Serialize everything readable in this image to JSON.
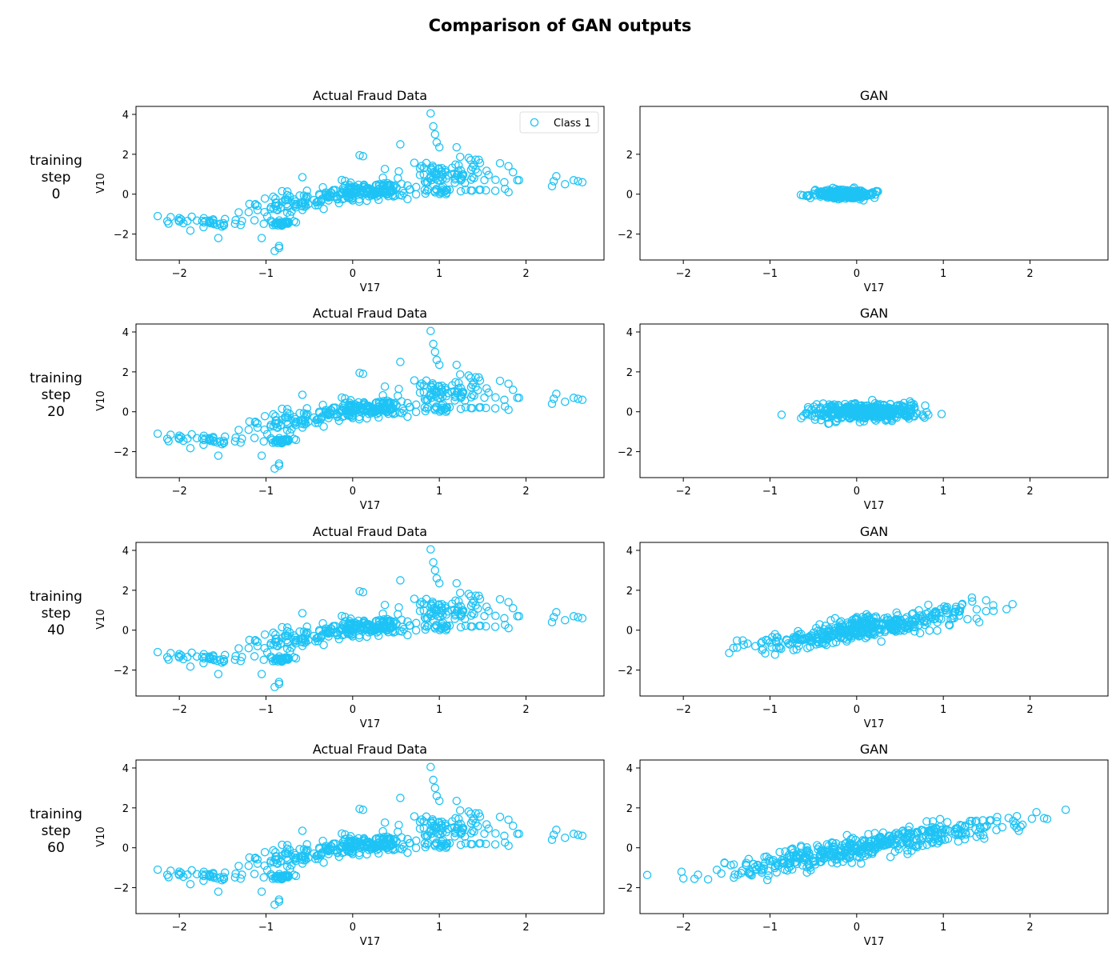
{
  "figure": {
    "title": "Comparison of GAN outputs",
    "marker_color": "#1ec3f5",
    "row_labels": [
      [
        "training",
        "step",
        "0"
      ],
      [
        "training",
        "step",
        "20"
      ],
      [
        "training",
        "step",
        "40"
      ],
      [
        "training",
        "step",
        "60"
      ]
    ]
  },
  "chart_data": [
    {
      "type": "scatter",
      "row": 0,
      "col": 0,
      "title": "Actual Fraud Data",
      "xlabel": "V17",
      "ylabel": "V10",
      "xlim": [
        -2.5,
        2.9
      ],
      "ylim": [
        -3.3,
        4.4
      ],
      "xticks": [
        -2,
        -1,
        0,
        1,
        2
      ],
      "yticks": [
        -2,
        0,
        2,
        4
      ],
      "legend": {
        "label": "Class 1",
        "position": "upper-right"
      },
      "series": [
        {
          "name": "Class 1",
          "dist": "fraud",
          "count": 460,
          "seed": 11
        }
      ]
    },
    {
      "type": "scatter",
      "row": 0,
      "col": 1,
      "title": "GAN",
      "xlabel": "V17",
      "ylabel": "",
      "xlim": [
        -2.5,
        2.9
      ],
      "ylim": [
        -3.3,
        4.4
      ],
      "xticks": [
        -2,
        -1,
        0,
        1,
        2
      ],
      "yticks": [
        -2,
        0,
        2
      ],
      "series": [
        {
          "name": "",
          "dist": "gauss",
          "count": 380,
          "seed": 21,
          "mean": [
            -0.15,
            0.0
          ],
          "sd": [
            0.16,
            0.1
          ],
          "slope": 0.0
        }
      ]
    },
    {
      "type": "scatter",
      "row": 1,
      "col": 0,
      "title": "Actual Fraud Data",
      "xlabel": "V17",
      "ylabel": "V10",
      "xlim": [
        -2.5,
        2.9
      ],
      "ylim": [
        -3.3,
        4.4
      ],
      "xticks": [
        -2,
        -1,
        0,
        1,
        2
      ],
      "yticks": [
        -2,
        0,
        2,
        4
      ],
      "series": [
        {
          "name": "Class 1",
          "dist": "fraud",
          "count": 460,
          "seed": 11
        }
      ]
    },
    {
      "type": "scatter",
      "row": 1,
      "col": 1,
      "title": "GAN",
      "xlabel": "V17",
      "ylabel": "",
      "xlim": [
        -2.5,
        2.9
      ],
      "ylim": [
        -3.3,
        4.4
      ],
      "xticks": [
        -2,
        -1,
        0,
        1,
        2
      ],
      "yticks": [
        -2,
        0,
        2,
        4
      ],
      "series": [
        {
          "name": "",
          "dist": "gauss",
          "count": 420,
          "seed": 31,
          "mean": [
            0.1,
            0.0
          ],
          "sd": [
            0.32,
            0.2
          ],
          "slope": 0.05
        }
      ]
    },
    {
      "type": "scatter",
      "row": 2,
      "col": 0,
      "title": "Actual Fraud Data",
      "xlabel": "V17",
      "ylabel": "V10",
      "xlim": [
        -2.5,
        2.9
      ],
      "ylim": [
        -3.3,
        4.4
      ],
      "xticks": [
        -2,
        -1,
        0,
        1,
        2
      ],
      "yticks": [
        -2,
        0,
        2,
        4
      ],
      "series": [
        {
          "name": "Class 1",
          "dist": "fraud",
          "count": 460,
          "seed": 11
        }
      ]
    },
    {
      "type": "scatter",
      "row": 2,
      "col": 1,
      "title": "GAN",
      "xlabel": "V17",
      "ylabel": "",
      "xlim": [
        -2.5,
        2.9
      ],
      "ylim": [
        -3.3,
        4.4
      ],
      "xticks": [
        -2,
        -1,
        0,
        1,
        2
      ],
      "yticks": [
        -2,
        0,
        2,
        4
      ],
      "series": [
        {
          "name": "",
          "dist": "gauss",
          "count": 420,
          "seed": 41,
          "mean": [
            0.1,
            0.1
          ],
          "sd": [
            0.65,
            0.28
          ],
          "slope": 0.72
        }
      ]
    },
    {
      "type": "scatter",
      "row": 3,
      "col": 0,
      "title": "Actual Fraud Data",
      "xlabel": "V17",
      "ylabel": "V10",
      "xlim": [
        -2.5,
        2.9
      ],
      "ylim": [
        -3.3,
        4.4
      ],
      "xticks": [
        -2,
        -1,
        0,
        1,
        2
      ],
      "yticks": [
        -2,
        0,
        2,
        4
      ],
      "series": [
        {
          "name": "Class 1",
          "dist": "fraud",
          "count": 460,
          "seed": 11
        }
      ]
    },
    {
      "type": "scatter",
      "row": 3,
      "col": 1,
      "title": "GAN",
      "xlabel": "V17",
      "ylabel": "",
      "xlim": [
        -2.5,
        2.9
      ],
      "ylim": [
        -3.3,
        4.4
      ],
      "xticks": [
        -2,
        -1,
        0,
        1,
        2
      ],
      "yticks": [
        -2,
        0,
        2,
        4
      ],
      "series": [
        {
          "name": "",
          "dist": "gauss",
          "count": 460,
          "seed": 51,
          "mean": [
            0.15,
            0.05
          ],
          "sd": [
            0.85,
            0.3
          ],
          "slope": 0.78
        }
      ]
    }
  ]
}
